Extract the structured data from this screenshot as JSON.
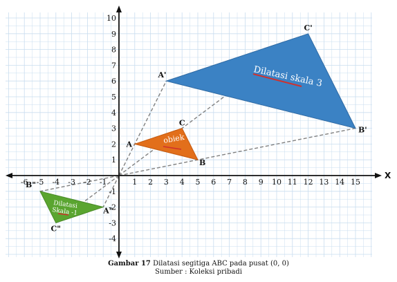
{
  "axes": {
    "x_name": "X",
    "x_ticks": [
      "-6",
      "-5",
      "-4",
      "-3",
      "-2",
      "-1",
      "1",
      "2",
      "3",
      "4",
      "5",
      "6",
      "7",
      "8",
      "9",
      "10",
      "11",
      "12",
      "13",
      "14",
      "15"
    ],
    "y_ticks": [
      "-4",
      "-3",
      "-2",
      "-1",
      "1",
      "2",
      "3",
      "4",
      "5",
      "6",
      "7",
      "8",
      "9",
      "10"
    ]
  },
  "colors": {
    "grid": "#c9ddef",
    "axis": "#111111",
    "dashed": "#808080",
    "big": "#3b82c4",
    "big_edge": "#2f6aa3",
    "object": "#e26f1b",
    "small": "#5aa530",
    "underline": "#d0312d"
  },
  "triangles": {
    "big": {
      "label": "Dilatasi skala 3",
      "vertices": [
        {
          "name": "A'",
          "x": 3,
          "y": 6
        },
        {
          "name": "B'",
          "x": 15,
          "y": 3
        },
        {
          "name": "C'",
          "x": 12,
          "y": 9
        }
      ]
    },
    "object": {
      "label": "obiek",
      "vertices": [
        {
          "name": "A",
          "x": 1,
          "y": 2
        },
        {
          "name": "B",
          "x": 5,
          "y": 1
        },
        {
          "name": "C",
          "x": 4,
          "y": 3
        }
      ]
    },
    "small": {
      "label_line1": "Dilatasi",
      "label_line2": "Skala -1",
      "vertices": [
        {
          "name": "B\"",
          "x": -5,
          "y": -1
        },
        {
          "name": "A\"",
          "x": -1,
          "y": -2
        },
        {
          "name": "C\"",
          "x": -4,
          "y": -3
        }
      ]
    }
  },
  "caption": {
    "bold": "Gambar 17",
    "text": " Dilatasi segitiga ABC pada pusat (0, 0)",
    "source": "Sumber : Koleksi pribadi"
  }
}
